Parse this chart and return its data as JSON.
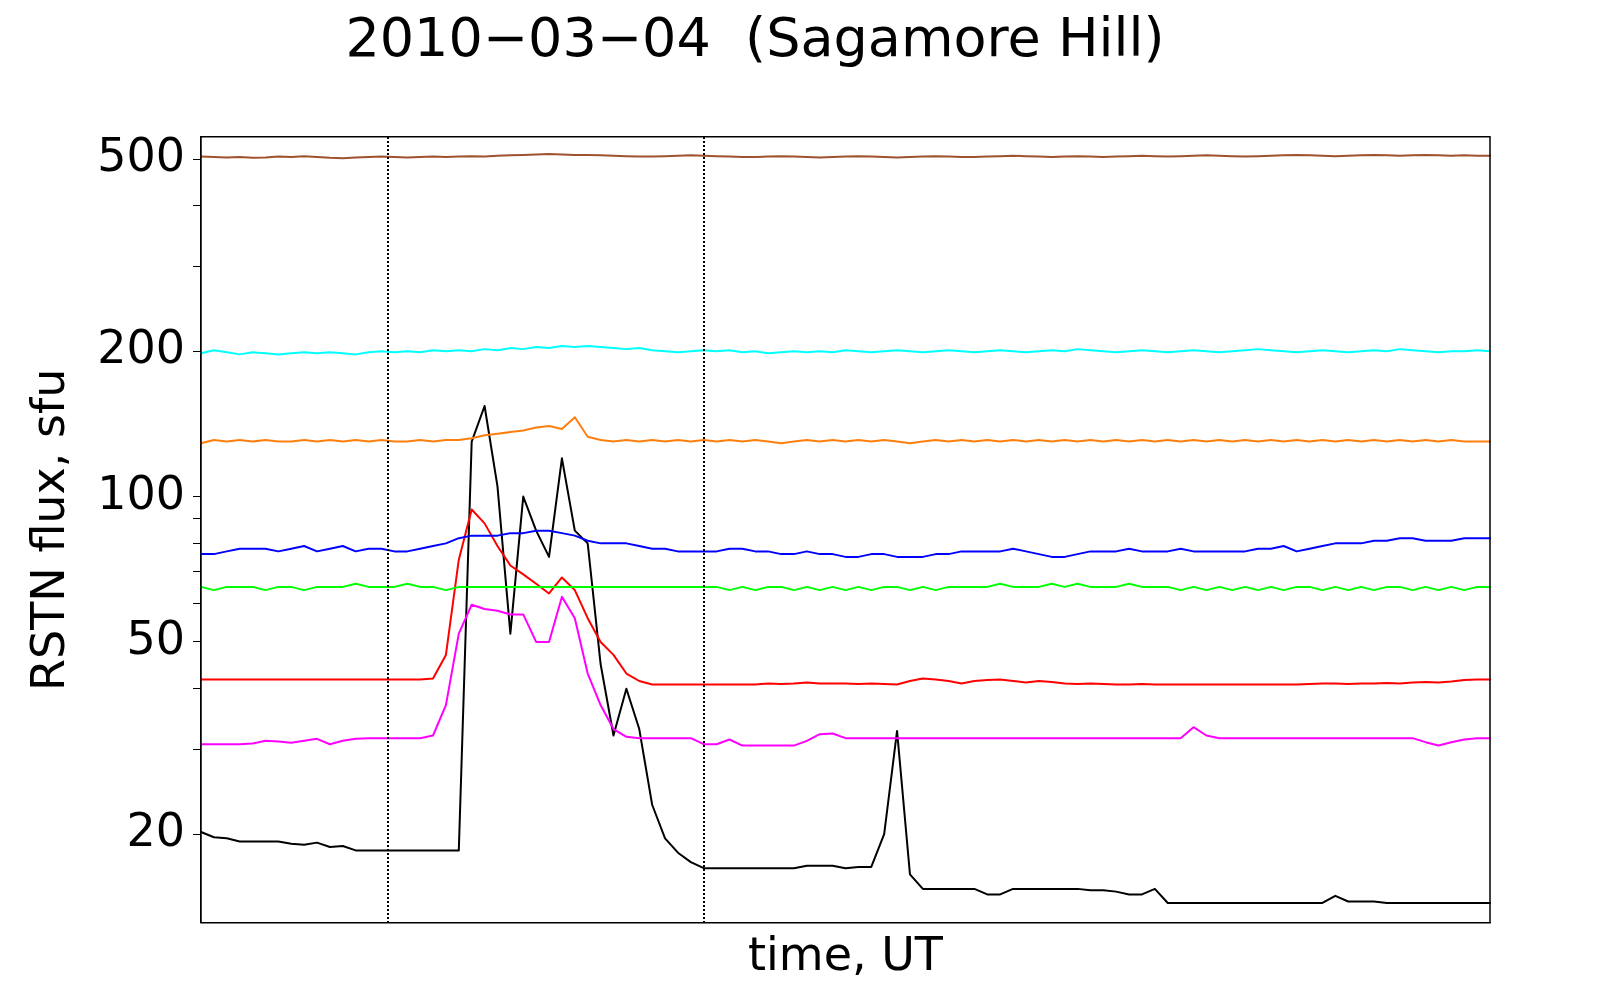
{
  "chart_data": {
    "type": "line",
    "title": "2010−03−04  (Sagamore Hill)",
    "xlabel": "time, UT",
    "ylabel": "RSTN flux, sfu",
    "log": "y",
    "grid": false,
    "legend": false,
    "marker": "none",
    "line_style": "solid",
    "tick_labels": "y",
    "categories": [
      null,
      null,
      null,
      null,
      null,
      null,
      null,
      null,
      null,
      null,
      null,
      null,
      null,
      null,
      null,
      null,
      null,
      null,
      null,
      null,
      null,
      null,
      null,
      null,
      null,
      null,
      null,
      null,
      null,
      null,
      null,
      null,
      null,
      null,
      null,
      null,
      null,
      null,
      null,
      null,
      null,
      null,
      null,
      null,
      null,
      null,
      null,
      null,
      null,
      null,
      null,
      null,
      null,
      null,
      null,
      null,
      null,
      null,
      null,
      null,
      null,
      null,
      null,
      null,
      null,
      null,
      null,
      null,
      null,
      null,
      null,
      null,
      null,
      null,
      null,
      null,
      null,
      null,
      null,
      null,
      null,
      null,
      null,
      null,
      null,
      null,
      null,
      null,
      null,
      null,
      null,
      null,
      null,
      null,
      null,
      null,
      null,
      null,
      null,
      null,
      null
    ],
    "ylim": [
      13.1,
      556
    ],
    "yticks": [
      20,
      {
        "value": 30,
        "label": null
      },
      {
        "value": 40,
        "label": null
      },
      50,
      {
        "value": 60,
        "label": null
      },
      {
        "value": 70,
        "label": null
      },
      {
        "value": 80,
        "label": null
      },
      {
        "value": 90,
        "label": null
      },
      100,
      200,
      {
        "value": 300,
        "label": null
      },
      {
        "value": 400,
        "label": null
      },
      500
    ],
    "series": [
      {
        "color": "#a0522d",
        "values": [
          506,
          505,
          504,
          505,
          503,
          504,
          506,
          505,
          507,
          505,
          503,
          502,
          504,
          505,
          506,
          505,
          504,
          505,
          506,
          505,
          506,
          507,
          506,
          508,
          509,
          510,
          511,
          512,
          511,
          510,
          510,
          509,
          508,
          507,
          506,
          506,
          507,
          508,
          509,
          508,
          507,
          506,
          505,
          505,
          506,
          507,
          506,
          505,
          504,
          505,
          506,
          507,
          506,
          505,
          504,
          505,
          506,
          507,
          506,
          505,
          505,
          506,
          507,
          508,
          507,
          506,
          505,
          506,
          507,
          506,
          505,
          506,
          507,
          508,
          507,
          506,
          507,
          508,
          509,
          508,
          507,
          506,
          507,
          508,
          509,
          510,
          509,
          508,
          507,
          508,
          509,
          510,
          509,
          508,
          509,
          510,
          509,
          508,
          509,
          508,
          508
        ]
      },
      {
        "color": "#00ffff",
        "values": [
          198,
          201,
          199,
          197,
          199,
          198,
          197,
          198,
          199,
          198,
          199,
          198,
          197,
          199,
          200,
          199,
          200,
          199,
          201,
          200,
          201,
          200,
          202,
          201,
          203,
          202,
          204,
          203,
          205,
          204,
          205,
          204,
          203,
          202,
          203,
          201,
          200,
          199,
          200,
          201,
          200,
          201,
          199,
          200,
          198,
          199,
          200,
          199,
          200,
          199,
          201,
          200,
          199,
          200,
          201,
          200,
          199,
          200,
          201,
          200,
          199,
          200,
          201,
          200,
          199,
          200,
          201,
          200,
          202,
          201,
          200,
          199,
          200,
          201,
          200,
          199,
          200,
          201,
          200,
          199,
          200,
          201,
          202,
          201,
          200,
          199,
          200,
          201,
          200,
          199,
          200,
          201,
          200,
          202,
          201,
          200,
          199,
          200,
          200,
          201,
          200
        ]
      },
      {
        "color": "#ff7f0e",
        "values": [
          129,
          131,
          130,
          131,
          130,
          131,
          130,
          130,
          131,
          130,
          131,
          130,
          131,
          130,
          131,
          130,
          130,
          131,
          130,
          131,
          131,
          132,
          134,
          135,
          136,
          137,
          139,
          140,
          138,
          146,
          133,
          131,
          130,
          131,
          130,
          131,
          130,
          131,
          130,
          131,
          130,
          131,
          130,
          131,
          130,
          129,
          130,
          131,
          130,
          131,
          130,
          131,
          130,
          131,
          130,
          129,
          130,
          131,
          130,
          131,
          130,
          131,
          130,
          131,
          130,
          131,
          130,
          131,
          130,
          131,
          130,
          131,
          130,
          131,
          130,
          131,
          130,
          131,
          130,
          131,
          130,
          131,
          130,
          131,
          130,
          131,
          130,
          131,
          130,
          131,
          130,
          131,
          130,
          131,
          130,
          131,
          130,
          131,
          130,
          130,
          130
        ]
      },
      {
        "color": "#0000ff",
        "values": [
          76,
          76,
          77,
          78,
          78,
          78,
          77,
          78,
          79,
          77,
          78,
          79,
          77,
          78,
          78,
          77,
          77,
          78,
          79,
          80,
          82,
          83,
          83,
          83,
          84,
          84,
          85,
          85,
          84,
          83,
          81,
          80,
          80,
          80,
          79,
          78,
          78,
          77,
          77,
          77,
          77,
          78,
          78,
          77,
          77,
          76,
          76,
          77,
          76,
          76,
          75,
          75,
          76,
          76,
          75,
          75,
          75,
          76,
          76,
          77,
          77,
          77,
          77,
          78,
          77,
          76,
          75,
          75,
          76,
          77,
          77,
          77,
          78,
          77,
          77,
          77,
          78,
          77,
          77,
          77,
          77,
          77,
          78,
          78,
          79,
          77,
          78,
          79,
          80,
          80,
          80,
          81,
          81,
          82,
          82,
          81,
          81,
          81,
          82,
          82,
          82
        ]
      },
      {
        "color": "#00ff00",
        "values": [
          65,
          64,
          65,
          65,
          65,
          64,
          65,
          65,
          64,
          65,
          65,
          65,
          66,
          65,
          65,
          65,
          66,
          65,
          65,
          64,
          65,
          65,
          65,
          65,
          65,
          65,
          65,
          65,
          65,
          65,
          65,
          65,
          65,
          65,
          65,
          65,
          65,
          65,
          65,
          65,
          65,
          64,
          65,
          64,
          65,
          65,
          64,
          65,
          64,
          65,
          64,
          65,
          64,
          65,
          65,
          64,
          65,
          64,
          65,
          65,
          65,
          65,
          66,
          65,
          65,
          65,
          66,
          65,
          66,
          65,
          65,
          65,
          66,
          65,
          65,
          65,
          64,
          65,
          64,
          65,
          64,
          65,
          64,
          65,
          64,
          65,
          65,
          64,
          65,
          64,
          65,
          64,
          65,
          65,
          64,
          65,
          64,
          65,
          64,
          65,
          65
        ]
      },
      {
        "color": "#ff0000",
        "values": [
          41.8,
          41.8,
          41.8,
          41.8,
          41.8,
          41.8,
          41.8,
          41.8,
          41.8,
          41.8,
          41.8,
          41.8,
          41.8,
          41.8,
          41.8,
          41.8,
          41.8,
          41.8,
          42,
          47,
          74,
          94,
          88,
          79,
          72,
          69,
          66,
          63,
          68,
          64,
          56,
          50,
          47,
          43,
          41.5,
          40.8,
          40.8,
          40.8,
          40.8,
          40.8,
          40.8,
          40.8,
          40.8,
          40.8,
          41,
          40.9,
          41,
          41.2,
          41,
          41,
          41,
          40.9,
          41,
          40.9,
          40.8,
          41.5,
          42,
          41.8,
          41.5,
          41,
          41.5,
          41.7,
          41.8,
          41.5,
          41.2,
          41.5,
          41.3,
          41,
          40.9,
          41,
          40.9,
          40.8,
          40.8,
          40.9,
          40.8,
          40.8,
          40.8,
          40.8,
          40.8,
          40.8,
          40.8,
          40.8,
          40.8,
          40.8,
          40.8,
          40.8,
          40.9,
          41,
          41,
          40.9,
          41,
          41,
          41.1,
          41,
          41.2,
          41.3,
          41.2,
          41.4,
          41.7,
          41.8,
          41.8
        ]
      },
      {
        "color": "#ff00ff",
        "values": [
          30.7,
          30.7,
          30.7,
          30.7,
          30.8,
          31.2,
          31.1,
          30.9,
          31.2,
          31.5,
          30.7,
          31.2,
          31.5,
          31.6,
          31.6,
          31.6,
          31.6,
          31.6,
          32,
          37,
          52,
          59.7,
          58.5,
          58,
          57,
          57,
          50,
          50,
          62,
          56,
          43,
          37,
          33,
          31.8,
          31.6,
          31.6,
          31.6,
          31.6,
          31.6,
          30.7,
          30.7,
          31.4,
          30.5,
          30.5,
          30.5,
          30.5,
          30.5,
          31.2,
          32.2,
          32.3,
          31.6,
          31.6,
          31.6,
          31.6,
          31.6,
          31.6,
          31.6,
          31.6,
          31.6,
          31.6,
          31.6,
          31.6,
          31.6,
          31.6,
          31.6,
          31.6,
          31.6,
          31.6,
          31.6,
          31.6,
          31.6,
          31.6,
          31.6,
          31.6,
          31.6,
          31.6,
          31.6,
          33.3,
          32,
          31.6,
          31.6,
          31.6,
          31.6,
          31.6,
          31.6,
          31.6,
          31.6,
          31.6,
          31.6,
          31.6,
          31.6,
          31.6,
          31.6,
          31.6,
          31.6,
          31,
          30.5,
          31,
          31.4,
          31.6,
          31.6
        ]
      },
      {
        "color": "#000000",
        "values": [
          20.2,
          19.7,
          19.6,
          19.3,
          19.3,
          19.3,
          19.3,
          19.1,
          19.0,
          19.2,
          18.8,
          18.9,
          18.5,
          18.5,
          18.5,
          18.5,
          18.5,
          18.5,
          18.5,
          18.5,
          18.5,
          130,
          154,
          105,
          52,
          100,
          85,
          75,
          120,
          85,
          80,
          45,
          32,
          40,
          33,
          23,
          19.6,
          18.3,
          17.5,
          17,
          17,
          17,
          17,
          17,
          17,
          17,
          17,
          17.2,
          17.2,
          17.2,
          17,
          17.1,
          17.1,
          20,
          32.7,
          16.5,
          15.4,
          15.4,
          15.4,
          15.4,
          15.4,
          15,
          15,
          15.4,
          15.4,
          15.4,
          15.4,
          15.4,
          15.4,
          15.3,
          15.3,
          15.2,
          15,
          15,
          15.4,
          14.4,
          14.4,
          14.4,
          14.4,
          14.4,
          14.4,
          14.4,
          14.4,
          14.4,
          14.4,
          14.4,
          14.4,
          14.4,
          14.9,
          14.5,
          14.5,
          14.5,
          14.4,
          14.4,
          14.4,
          14.4,
          14.4,
          14.4,
          14.4,
          14.4,
          14.4
        ]
      }
    ]
  }
}
